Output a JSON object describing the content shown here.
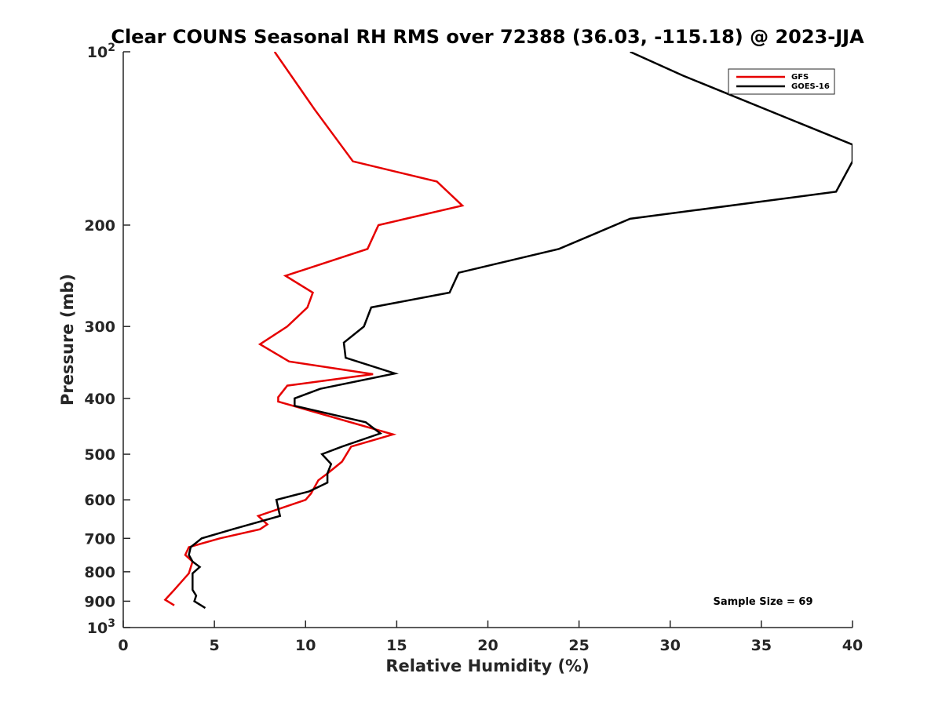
{
  "chart_data": {
    "type": "line",
    "title": "Clear COUNS Seasonal RH RMS over 72388 (36.03, -115.18) @ 2023-JJA",
    "xlabel": "Relative Humidity (%)",
    "ylabel": "Pressure (mb)",
    "xlim": [
      0,
      40
    ],
    "ylim": [
      100,
      1000
    ],
    "yscale": "log",
    "y_reversed": true,
    "x_ticks": [
      0,
      5,
      10,
      15,
      20,
      25,
      30,
      35,
      40
    ],
    "x_tick_labels": [
      "0",
      "5",
      "10",
      "15",
      "20",
      "25",
      "30",
      "35",
      "40"
    ],
    "y_ticks": [
      200,
      300,
      400,
      500,
      600,
      700,
      800,
      900
    ],
    "y_tick_labels": [
      "200",
      "300",
      "400",
      "500",
      "600",
      "700",
      "800",
      "900"
    ],
    "y_ticks_power": [
      {
        "value": 100,
        "base": "10",
        "exp": "2"
      },
      {
        "value": 1000,
        "base": "10",
        "exp": "3"
      }
    ],
    "legend_position": "top-right",
    "annotation": "Sample Size = 69",
    "series": [
      {
        "name": "GFS",
        "color": "#e60000",
        "x": [
          8.3,
          10.5,
          12.6,
          17.2,
          18.6,
          14.0,
          13.4,
          8.9,
          10.4,
          10.1,
          9.0,
          7.5,
          9.1,
          13.7,
          9.0,
          8.5,
          8.5,
          14.8,
          12.5,
          12.0,
          11.2,
          10.7,
          10.3,
          10.0,
          7.4,
          7.9,
          7.5,
          5.3,
          3.6,
          3.4,
          3.8,
          3.6,
          2.8,
          2.3,
          2.8
        ],
        "y": [
          100,
          126,
          155,
          168,
          185,
          200,
          220,
          245,
          262,
          278,
          300,
          322,
          345,
          363,
          380,
          398,
          405,
          462,
          485,
          515,
          540,
          555,
          585,
          600,
          640,
          662,
          675,
          700,
          725,
          748,
          768,
          805,
          860,
          895,
          915
        ]
      },
      {
        "name": "GOES-16",
        "color": "#000000",
        "x": [
          27.8,
          30.7,
          40.0,
          40.0,
          39.1,
          27.8,
          23.9,
          18.4,
          17.9,
          13.6,
          13.2,
          12.1,
          12.2,
          14.9,
          10.8,
          9.4,
          9.4,
          13.3,
          14.1,
          12.0,
          10.9,
          11.4,
          11.2,
          11.2,
          10.2,
          8.4,
          8.6,
          6.0,
          4.3,
          3.7,
          3.6,
          3.8,
          4.2,
          3.8,
          3.8,
          4.0,
          3.9,
          4.5
        ],
        "y": [
          100,
          110,
          145,
          155,
          175,
          195,
          220,
          242,
          262,
          278,
          300,
          320,
          340,
          362,
          385,
          400,
          412,
          440,
          460,
          485,
          500,
          520,
          540,
          560,
          580,
          600,
          640,
          675,
          700,
          725,
          748,
          768,
          785,
          805,
          860,
          880,
          900,
          925
        ]
      }
    ]
  }
}
